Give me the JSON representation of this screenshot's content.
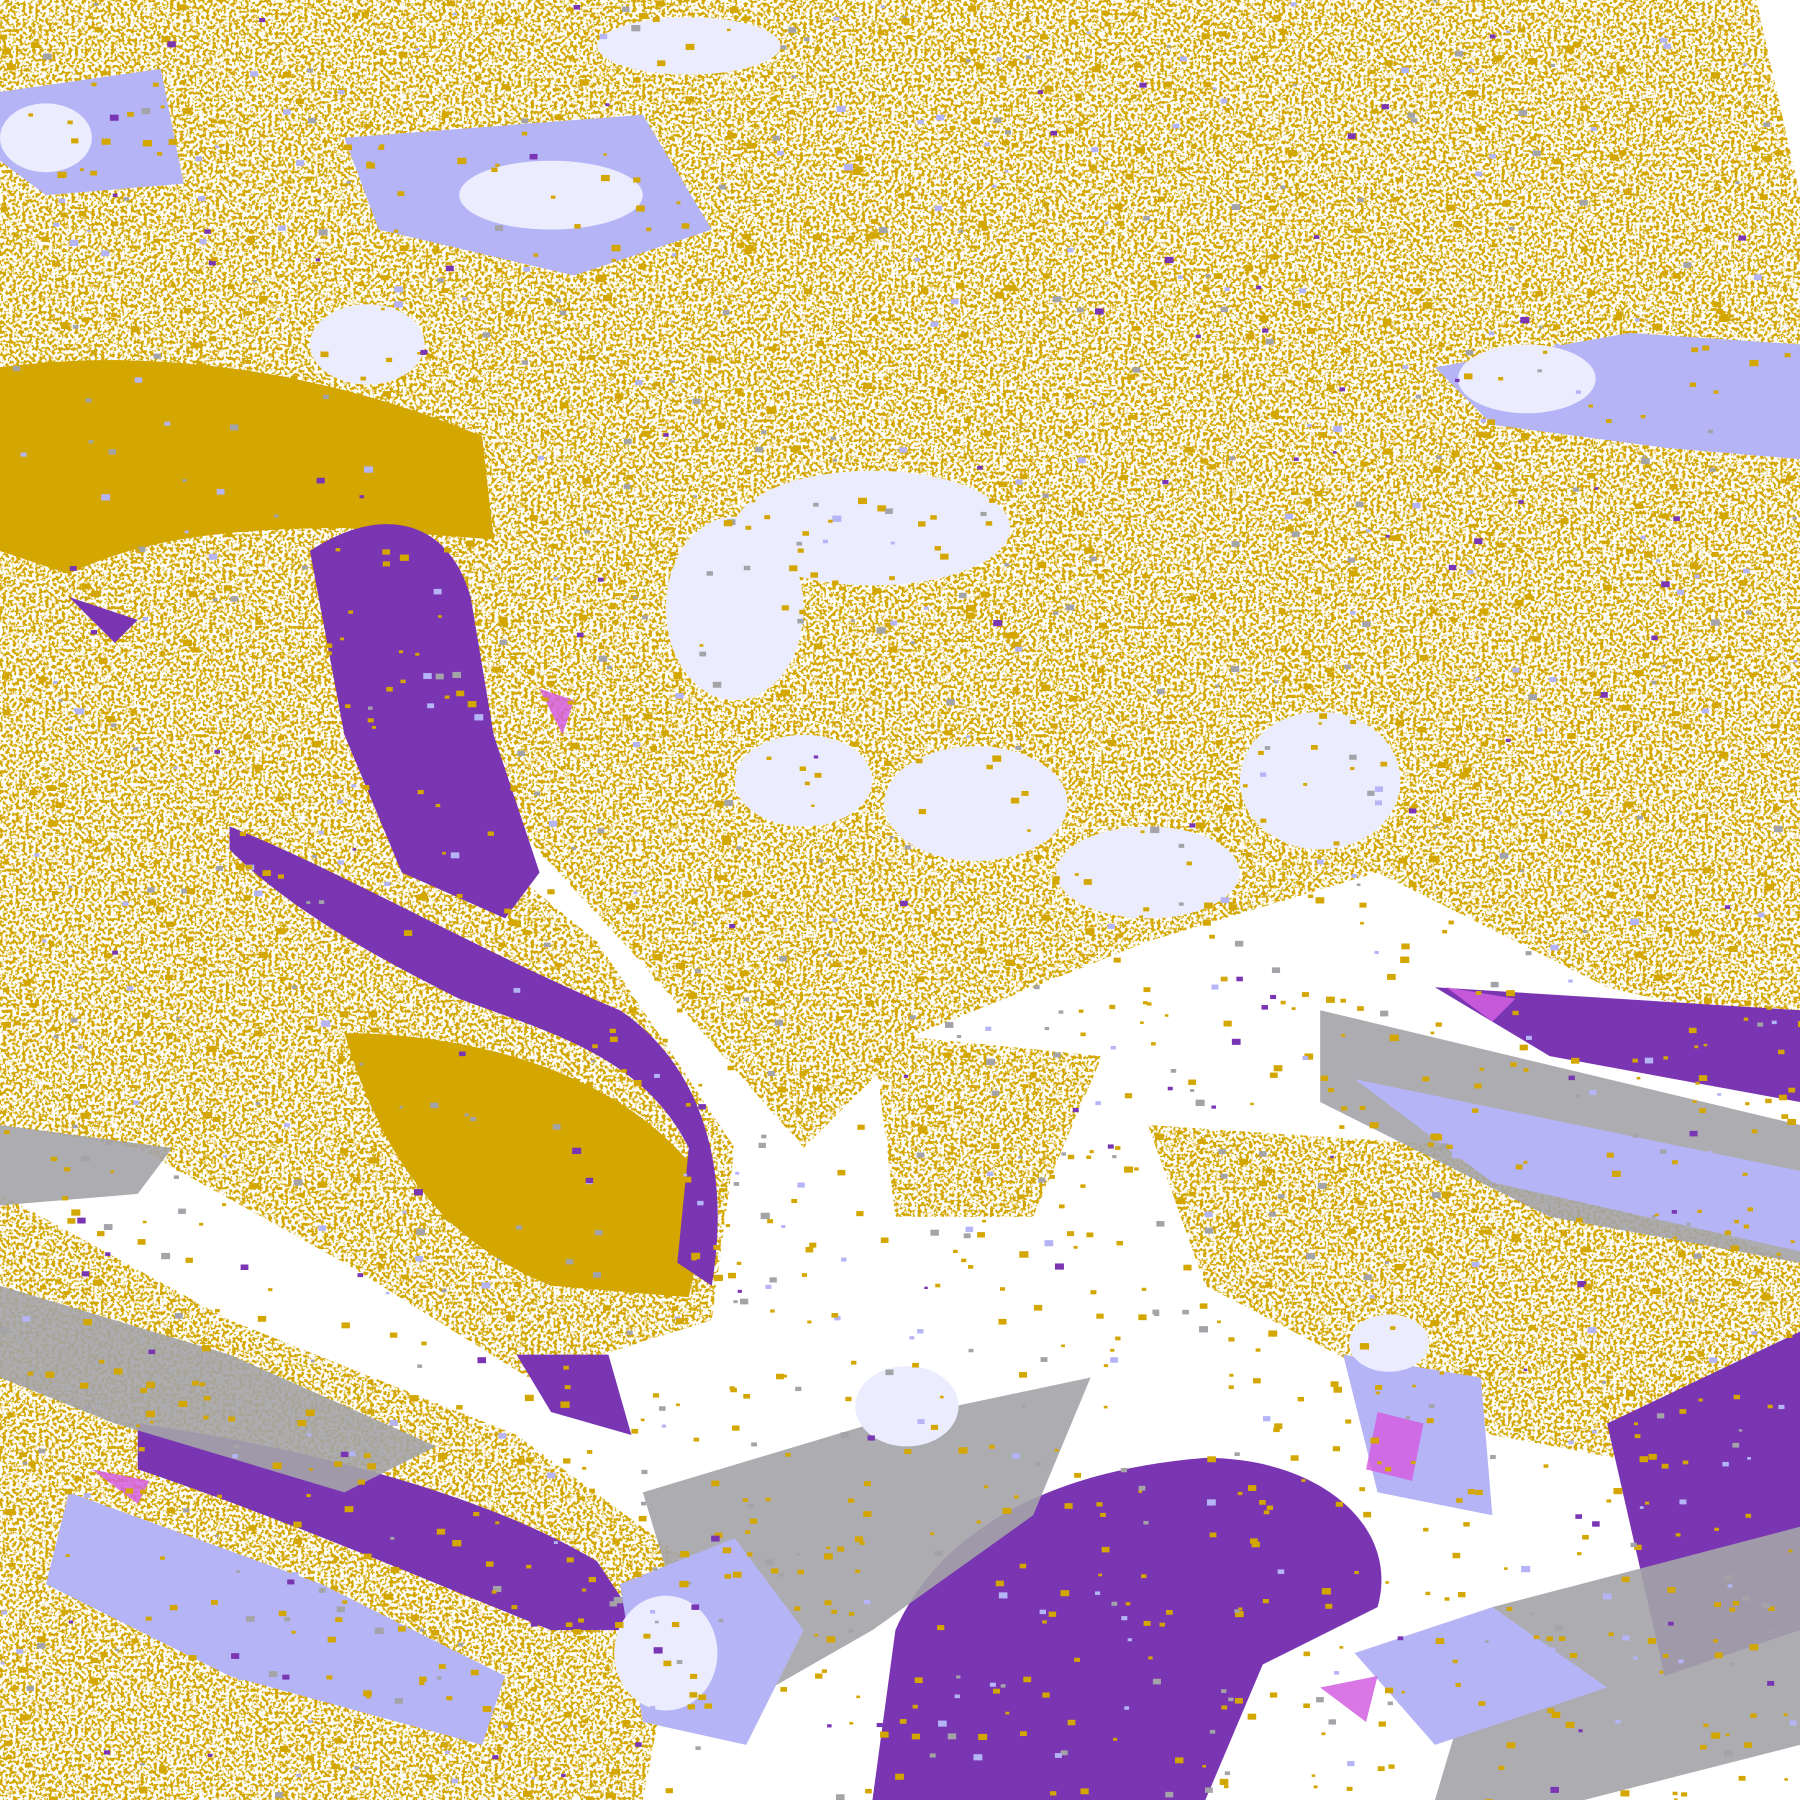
{
  "palette": {
    "background": "#ffffff",
    "gold": "#d4a600",
    "purple": "#7a35b2",
    "lavender": "#b4b4f6",
    "pale": "#ececff",
    "gray": "#a4a4a8",
    "magenta": "#d45ee0"
  }
}
